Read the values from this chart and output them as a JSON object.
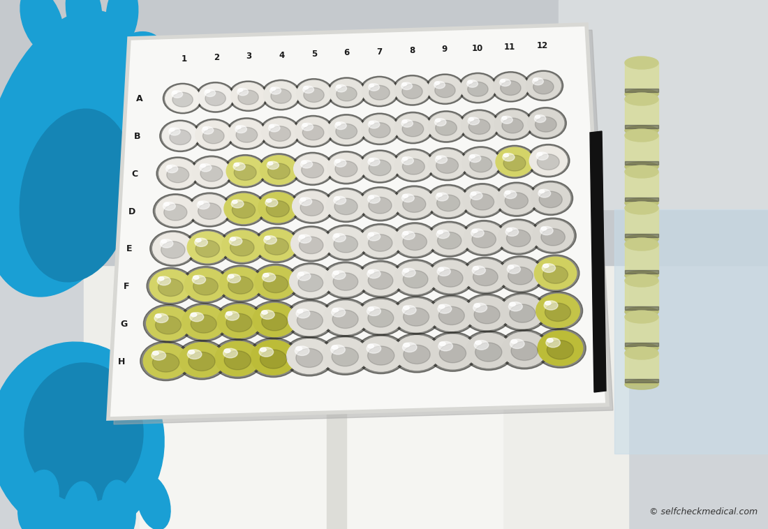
{
  "fig_width": 11.0,
  "fig_height": 7.58,
  "watermark": "© selfcheckmedical.com",
  "rows": [
    "A",
    "B",
    "C",
    "D",
    "E",
    "F",
    "G",
    "H"
  ],
  "cols": [
    "1",
    "2",
    "3",
    "4",
    "5",
    "6",
    "7",
    "8",
    "9",
    "10",
    "11",
    "12"
  ],
  "well_colors": [
    [
      "#f2f0eb",
      "#f0eeea",
      "#edeae4",
      "#eae8e2",
      "#e8e6e0",
      "#e6e4de",
      "#e4e2dc",
      "#e2e0da",
      "#e0ded8",
      "#dedcd6",
      "#dcdad4",
      "#dad8d2"
    ],
    [
      "#f0eeea",
      "#edeae4",
      "#ece9e3",
      "#eae7e1",
      "#e8e5df",
      "#e5e3dd",
      "#e3e1db",
      "#e1dfd9",
      "#dfddd7",
      "#dddbd5",
      "#dbd9d3",
      "#d9d7d1"
    ],
    [
      "#edeae4",
      "#ece9e3",
      "#d8d870",
      "#d4d468",
      "#eae7e1",
      "#e8e5df",
      "#e5e3dd",
      "#e3e1db",
      "#e1dfd9",
      "#dfddd7",
      "#d4d468",
      "#ece9e3"
    ],
    [
      "#ece9e3",
      "#eae7e1",
      "#d0d060",
      "#cccc58",
      "#e8e5df",
      "#e5e3dd",
      "#e3e1db",
      "#e1dfd9",
      "#dfddd7",
      "#dddbd5",
      "#dbd9d3",
      "#d9d7d1"
    ],
    [
      "#ece9e3",
      "#d8d870",
      "#d4d468",
      "#d4d468",
      "#e8e5df",
      "#e5e3dd",
      "#e3e1db",
      "#e1dfd9",
      "#dfddd7",
      "#dddbd5",
      "#dbd9d3",
      "#d9d7d1"
    ],
    [
      "#d4d468",
      "#d0d060",
      "#cccc58",
      "#c8c850",
      "#e5e3dd",
      "#e3e1db",
      "#e1dfd9",
      "#dfddd7",
      "#dddbd5",
      "#dbd9d3",
      "#d9d7d1",
      "#d0d060"
    ],
    [
      "#cccc58",
      "#c8c850",
      "#c4c448",
      "#c0c040",
      "#e3e1db",
      "#e1dfd9",
      "#dfddd7",
      "#dddbd5",
      "#dbd9d3",
      "#d9d7d1",
      "#d7d5cf",
      "#c4c448"
    ],
    [
      "#c8c850",
      "#c4c448",
      "#c0c040",
      "#bcbc38",
      "#e1dfd9",
      "#dfddd7",
      "#dddbd5",
      "#dbd9d3",
      "#d9d7d1",
      "#d7d5cf",
      "#d5d3cd",
      "#bcbc38"
    ]
  ],
  "bg_top": "#c8ccd0",
  "bg_bottom": "#e8eaec",
  "plate_color": "#f8f8f6",
  "plate_edge": "#e0e0dc",
  "glove_color": "#1a9fd4",
  "glove_dark": "#1585b5",
  "tape_color": "#111111",
  "tube_color": "#d8dca0",
  "tube_dark": "#b8bc70",
  "label_color": "#1a1a1a",
  "watermark_color": "#333333"
}
